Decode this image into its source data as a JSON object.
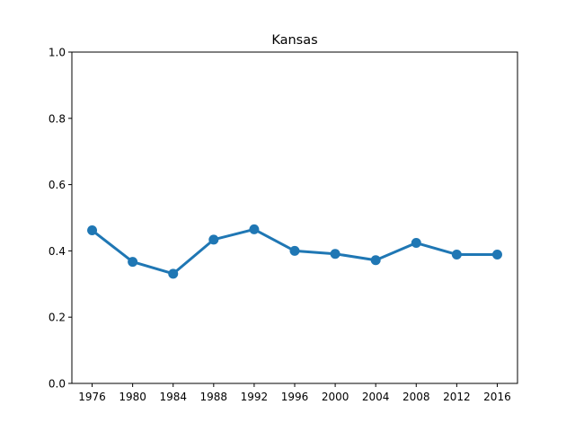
{
  "chart_data": {
    "type": "line",
    "title": "Kansas",
    "xlabel": "",
    "ylabel": "",
    "categories": [
      "1976",
      "1980",
      "1984",
      "1988",
      "1992",
      "1996",
      "2000",
      "2004",
      "2008",
      "2012",
      "2016"
    ],
    "values": [
      0.462,
      0.367,
      0.331,
      0.434,
      0.465,
      0.4,
      0.391,
      0.372,
      0.424,
      0.389,
      0.389
    ],
    "ylim": [
      0,
      1
    ],
    "yticks": [
      "0.0",
      "0.2",
      "0.4",
      "0.6",
      "0.8",
      "1.0"
    ],
    "grid": false,
    "legend": "none",
    "line_color": "#1f77b4"
  }
}
